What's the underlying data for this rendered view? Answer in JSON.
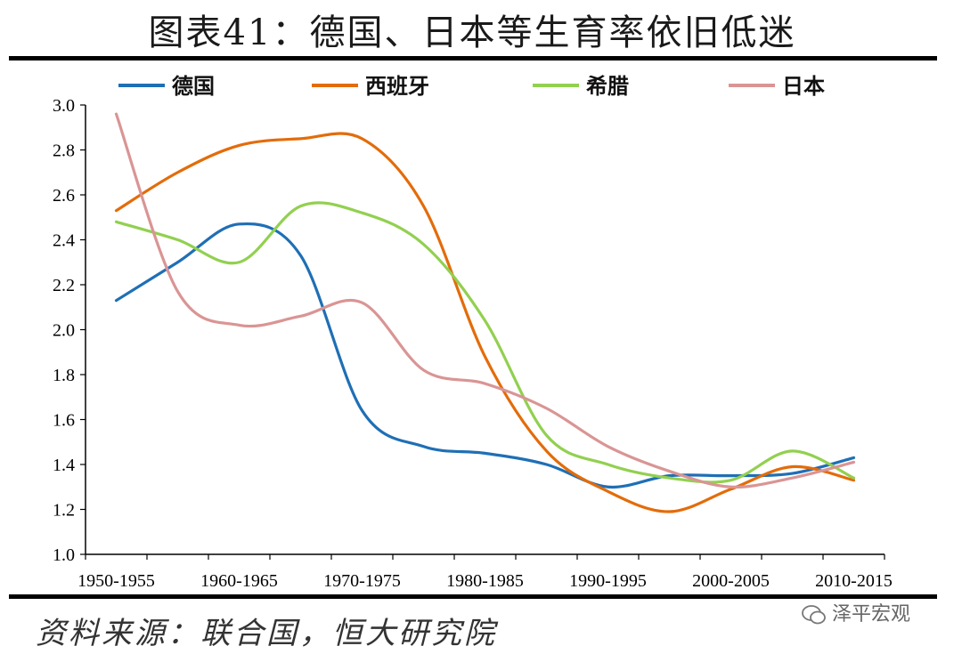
{
  "header": {
    "title": "图表41：德国、日本等生育率依旧低迷"
  },
  "footer": {
    "source": "资料来源：联合国，恒大研究院",
    "watermark": "泽平宏观"
  },
  "watermark_icon": "wechat-icon",
  "chart_data": {
    "type": "line",
    "title": "图表41：德国、日本等生育率依旧低迷",
    "xlabel": "",
    "ylabel": "",
    "categories": [
      "1950-1955",
      "1955-1960",
      "1960-1965",
      "1965-1970",
      "1970-1975",
      "1975-1980",
      "1980-1985",
      "1985-1990",
      "1990-1995",
      "1995-2000",
      "2000-2005",
      "2005-2010",
      "2010-2015"
    ],
    "x_tick_labels": [
      "1950-1955",
      "1960-1965",
      "1970-1975",
      "1980-1985",
      "1990-1995",
      "2000-2005",
      "2010-2015"
    ],
    "y_ticks": [
      "1.0",
      "1.2",
      "1.4",
      "1.6",
      "1.8",
      "2.0",
      "2.2",
      "2.4",
      "2.6",
      "2.8",
      "3.0"
    ],
    "ylim": [
      1.0,
      3.0
    ],
    "grid": false,
    "legend_position": "top",
    "series": [
      {
        "name": "德国",
        "color": "#1f6fb5",
        "values": [
          2.13,
          2.3,
          2.47,
          2.33,
          1.64,
          1.48,
          1.45,
          1.4,
          1.3,
          1.35,
          1.35,
          1.36,
          1.43
        ]
      },
      {
        "name": "西班牙",
        "color": "#e36c0a",
        "values": [
          2.53,
          2.7,
          2.82,
          2.85,
          2.85,
          2.55,
          1.88,
          1.46,
          1.28,
          1.19,
          1.29,
          1.39,
          1.33
        ]
      },
      {
        "name": "希腊",
        "color": "#92d050",
        "values": [
          2.48,
          2.4,
          2.3,
          2.55,
          2.52,
          2.38,
          2.04,
          1.53,
          1.4,
          1.34,
          1.33,
          1.46,
          1.34
        ]
      },
      {
        "name": "日本",
        "color": "#d99594",
        "values": [
          2.96,
          2.17,
          2.02,
          2.06,
          2.12,
          1.82,
          1.76,
          1.65,
          1.48,
          1.37,
          1.3,
          1.34,
          1.41
        ]
      }
    ]
  }
}
